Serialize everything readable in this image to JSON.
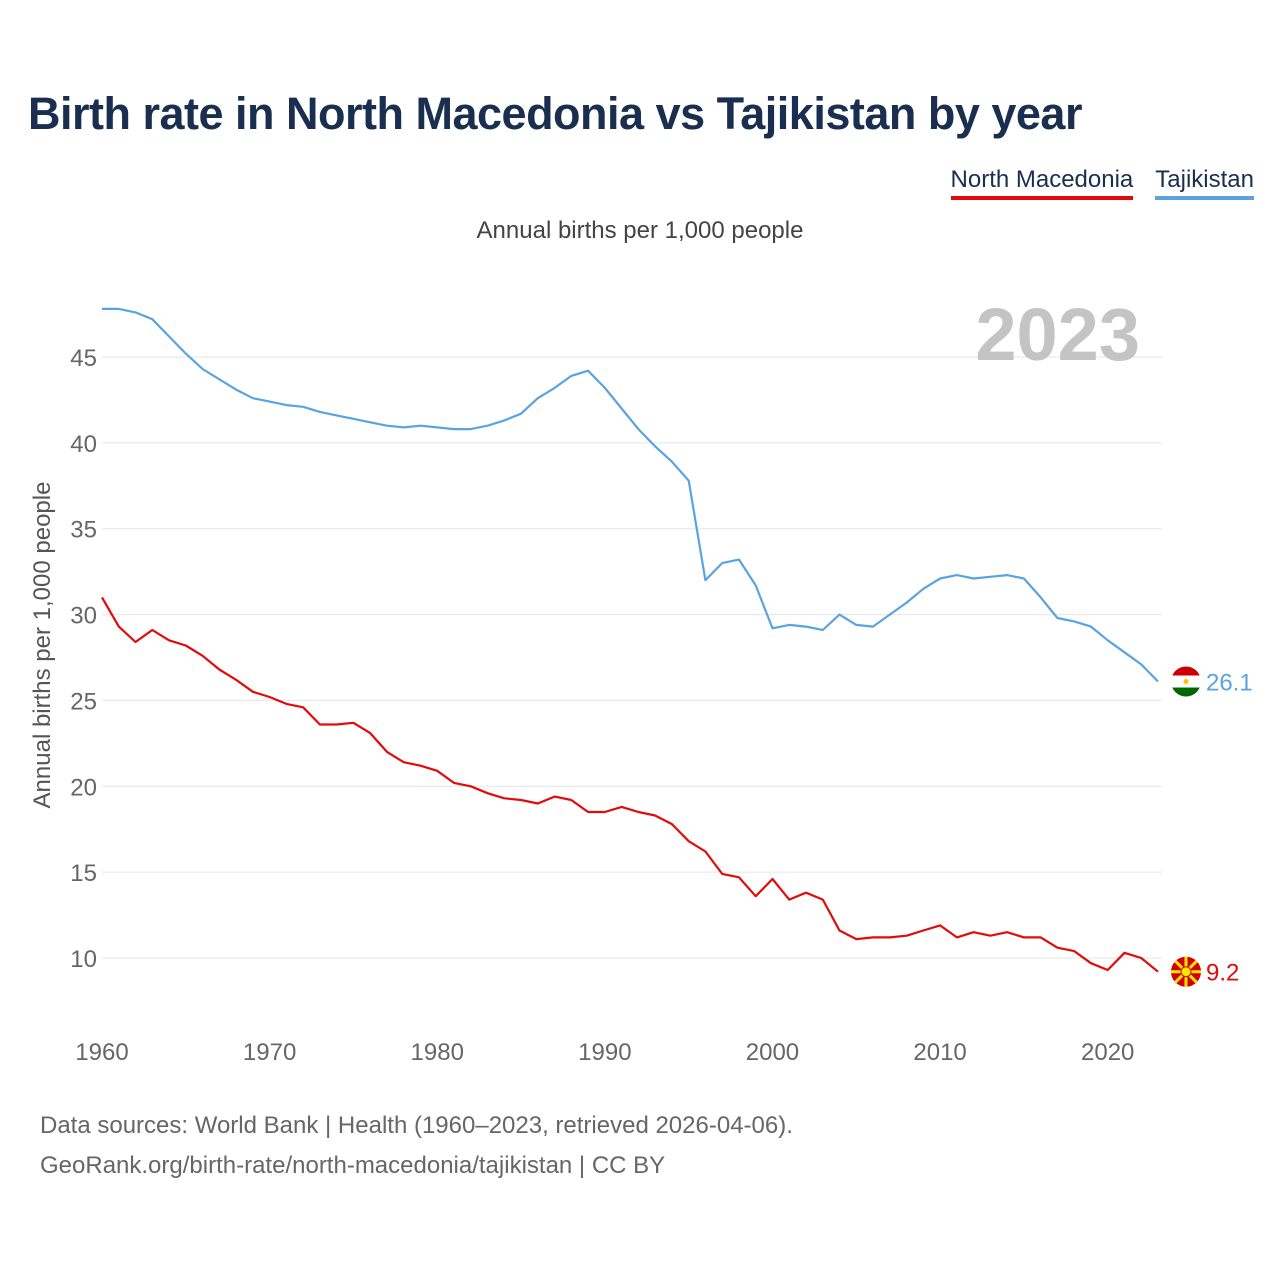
{
  "title": "Birth rate in North Macedonia vs Tajikistan by year",
  "subtitle": "Annual births per 1,000 people",
  "legend": {
    "north_macedonia": "North Macedonia",
    "tajikistan": "Tajikistan"
  },
  "footer": {
    "line1": "Data sources: World Bank | Health (1960–2023, retrieved 2026-04-06).",
    "line2": "GeoRank.org/birth-rate/north-macedonia/tajikistan | CC BY"
  },
  "colors": {
    "north_macedonia": "#e00b0b",
    "tajikistan": "#5ba3e0"
  },
  "chart_data": {
    "type": "line",
    "title": "Birth rate in North Macedonia vs Tajikistan by year",
    "year_label": "2023",
    "ylabel": "Annual births per 1,000 people",
    "xlabel": "",
    "xlim": [
      1960,
      2023
    ],
    "ylim": [
      7,
      48
    ],
    "x_ticks": [
      1960,
      1970,
      1980,
      1990,
      2000,
      2010,
      2020
    ],
    "y_ticks": [
      10,
      15,
      20,
      25,
      30,
      35,
      40,
      45
    ],
    "x": [
      1960,
      1961,
      1962,
      1963,
      1964,
      1965,
      1966,
      1967,
      1968,
      1969,
      1970,
      1971,
      1972,
      1973,
      1974,
      1975,
      1976,
      1977,
      1978,
      1979,
      1980,
      1981,
      1982,
      1983,
      1984,
      1985,
      1986,
      1987,
      1988,
      1989,
      1990,
      1991,
      1992,
      1993,
      1994,
      1995,
      1996,
      1997,
      1998,
      1999,
      2000,
      2001,
      2002,
      2003,
      2004,
      2005,
      2006,
      2007,
      2008,
      2009,
      2010,
      2011,
      2012,
      2013,
      2014,
      2015,
      2016,
      2017,
      2018,
      2019,
      2020,
      2021,
      2022,
      2023
    ],
    "series": [
      {
        "name": "Tajikistan",
        "end_label": "26.1",
        "values": [
          47.8,
          47.8,
          47.6,
          47.2,
          46.2,
          45.2,
          44.3,
          43.7,
          43.1,
          42.6,
          42.4,
          42.2,
          42.1,
          41.8,
          41.6,
          41.4,
          41.2,
          41.0,
          40.9,
          41.0,
          40.9,
          40.8,
          40.8,
          41.0,
          41.3,
          41.7,
          42.6,
          43.2,
          43.9,
          44.2,
          43.2,
          42.0,
          40.8,
          39.8,
          38.9,
          37.8,
          32.0,
          33.0,
          33.2,
          31.7,
          29.2,
          29.4,
          29.3,
          29.1,
          30.0,
          29.4,
          29.3,
          30.0,
          30.7,
          31.5,
          32.1,
          32.3,
          32.1,
          32.2,
          32.3,
          32.1,
          31.0,
          29.8,
          29.6,
          29.3,
          28.5,
          27.8,
          27.1,
          26.1
        ]
      },
      {
        "name": "North Macedonia",
        "end_label": "9.2",
        "values": [
          31.0,
          29.3,
          28.4,
          29.1,
          28.5,
          28.2,
          27.6,
          26.8,
          26.2,
          25.5,
          25.2,
          24.8,
          24.6,
          23.6,
          23.6,
          23.7,
          23.1,
          22.0,
          21.4,
          21.2,
          20.9,
          20.2,
          20.0,
          19.6,
          19.3,
          19.2,
          19.0,
          19.4,
          19.2,
          18.5,
          18.5,
          18.8,
          18.5,
          18.3,
          17.8,
          16.8,
          16.2,
          14.9,
          14.7,
          13.6,
          14.6,
          13.4,
          13.8,
          13.4,
          11.6,
          11.1,
          11.2,
          11.2,
          11.3,
          11.6,
          11.9,
          11.2,
          11.5,
          11.3,
          11.5,
          11.2,
          11.2,
          10.6,
          10.4,
          9.7,
          9.3,
          10.3,
          10.0,
          9.2
        ]
      }
    ]
  }
}
